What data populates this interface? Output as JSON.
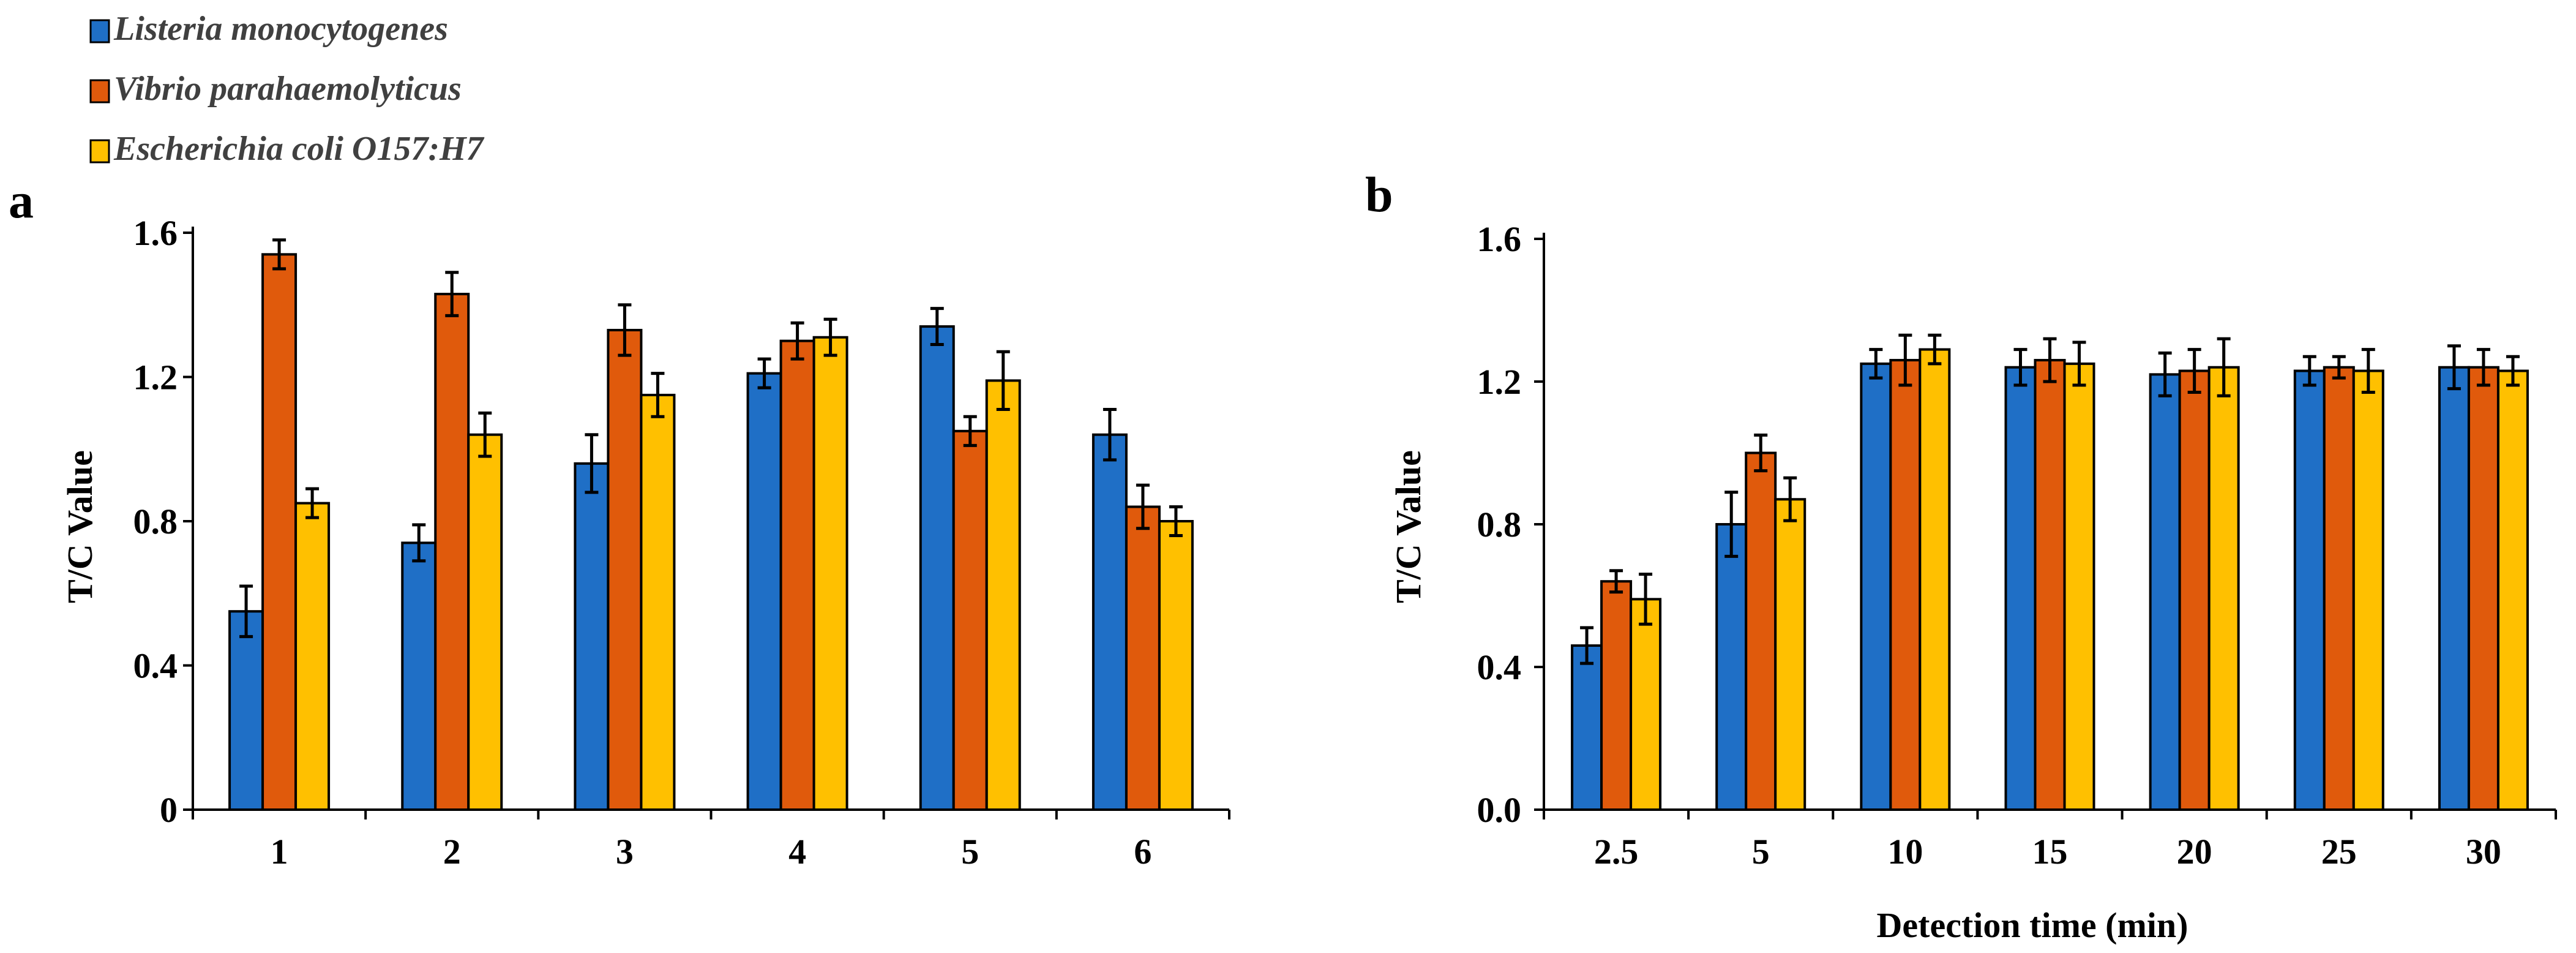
{
  "chart_data": [
    {
      "type": "bar",
      "panel_label": "a",
      "title": "",
      "xlabel": "",
      "ylabel": "T/C Value",
      "ylim": [
        0,
        1.6
      ],
      "yticks": [
        "0",
        "0.4",
        "0.8",
        "1.2",
        "1.6"
      ],
      "grid": false,
      "categories": [
        "1",
        "2",
        "3",
        "4",
        "5",
        "6"
      ],
      "series": [
        {
          "name": "Listeria monocytogenes",
          "color": "#1f6fc6",
          "values": [
            0.55,
            0.74,
            0.96,
            1.21,
            1.34,
            1.04
          ],
          "errors": [
            0.07,
            0.05,
            0.08,
            0.04,
            0.05,
            0.07
          ]
        },
        {
          "name": "Vibrio parahaemolyticus",
          "color": "#e05a0c",
          "values": [
            1.54,
            1.43,
            1.33,
            1.3,
            1.05,
            0.84
          ],
          "errors": [
            0.04,
            0.06,
            0.07,
            0.05,
            0.04,
            0.06
          ]
        },
        {
          "name": "Escherichia coli O157:H7",
          "color": "#ffc000",
          "values": [
            0.85,
            1.04,
            1.15,
            1.31,
            1.19,
            0.8
          ],
          "errors": [
            0.04,
            0.06,
            0.06,
            0.05,
            0.08,
            0.04
          ]
        }
      ],
      "legend": {
        "placement": "top-left",
        "entries": [
          "Listeria monocytogenes",
          "Vibrio parahaemolyticus",
          "Escherichia coli O157:H7"
        ]
      }
    },
    {
      "type": "bar",
      "panel_label": "b",
      "title": "",
      "xlabel": "Detection time (min)",
      "ylabel": "T/C Value",
      "ylim": [
        0,
        1.6
      ],
      "yticks": [
        "0.0",
        "0.4",
        "0.8",
        "1.2",
        "1.6"
      ],
      "grid": false,
      "categories": [
        "2.5",
        "5",
        "10",
        "15",
        "20",
        "25",
        "30"
      ],
      "series": [
        {
          "name": "Listeria monocytogenes",
          "color": "#1f6fc6",
          "values": [
            0.46,
            0.8,
            1.25,
            1.24,
            1.22,
            1.23,
            1.24
          ],
          "errors": [
            0.05,
            0.09,
            0.04,
            0.05,
            0.06,
            0.04,
            0.06
          ]
        },
        {
          "name": "Vibrio parahaemolyticus",
          "color": "#e05a0c",
          "values": [
            0.64,
            1.0,
            1.26,
            1.26,
            1.23,
            1.24,
            1.24
          ],
          "errors": [
            0.03,
            0.05,
            0.07,
            0.06,
            0.06,
            0.03,
            0.05
          ]
        },
        {
          "name": "Escherichia coli O157:H7",
          "color": "#ffc000",
          "values": [
            0.59,
            0.87,
            1.29,
            1.25,
            1.24,
            1.23,
            1.23
          ],
          "errors": [
            0.07,
            0.06,
            0.04,
            0.06,
            0.08,
            0.06,
            0.04
          ]
        }
      ]
    }
  ]
}
